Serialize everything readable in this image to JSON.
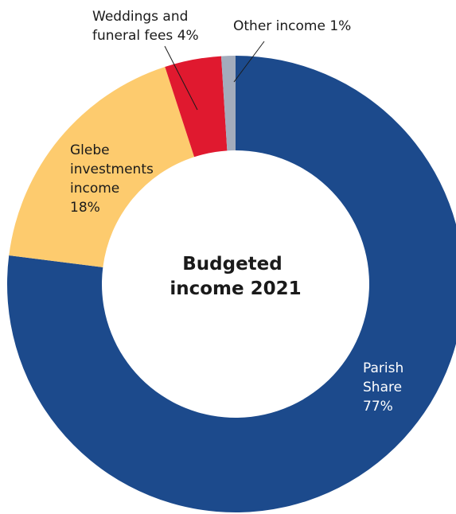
{
  "chart_data": {
    "type": "pie",
    "title": "Budgeted income 2021",
    "title_lines": [
      "Budgeted",
      "income 2021"
    ],
    "categories": [
      "Parish Share",
      "Glebe investments income",
      "Weddings and funeral fees",
      "Other income"
    ],
    "values": [
      77,
      18,
      4,
      1
    ],
    "unit": "%",
    "colors": [
      "#1c4a8c",
      "#fdcb6e",
      "#e0192f",
      "#a3acbc"
    ],
    "labels": [
      {
        "lines": [
          "Parish",
          "Share",
          "77%"
        ],
        "color": "#ffffff",
        "placement": "inside"
      },
      {
        "lines": [
          "Glebe",
          "investments",
          "income",
          "18%"
        ],
        "color": "#1a1a1a",
        "placement": "inside"
      },
      {
        "lines": [
          "Weddings and",
          "funeral fees 4%"
        ],
        "color": "#1a1a1a",
        "placement": "outside"
      },
      {
        "lines": [
          "Other income 1%"
        ],
        "color": "#1a1a1a",
        "placement": "outside"
      }
    ],
    "style": "donut",
    "legend": "none"
  }
}
